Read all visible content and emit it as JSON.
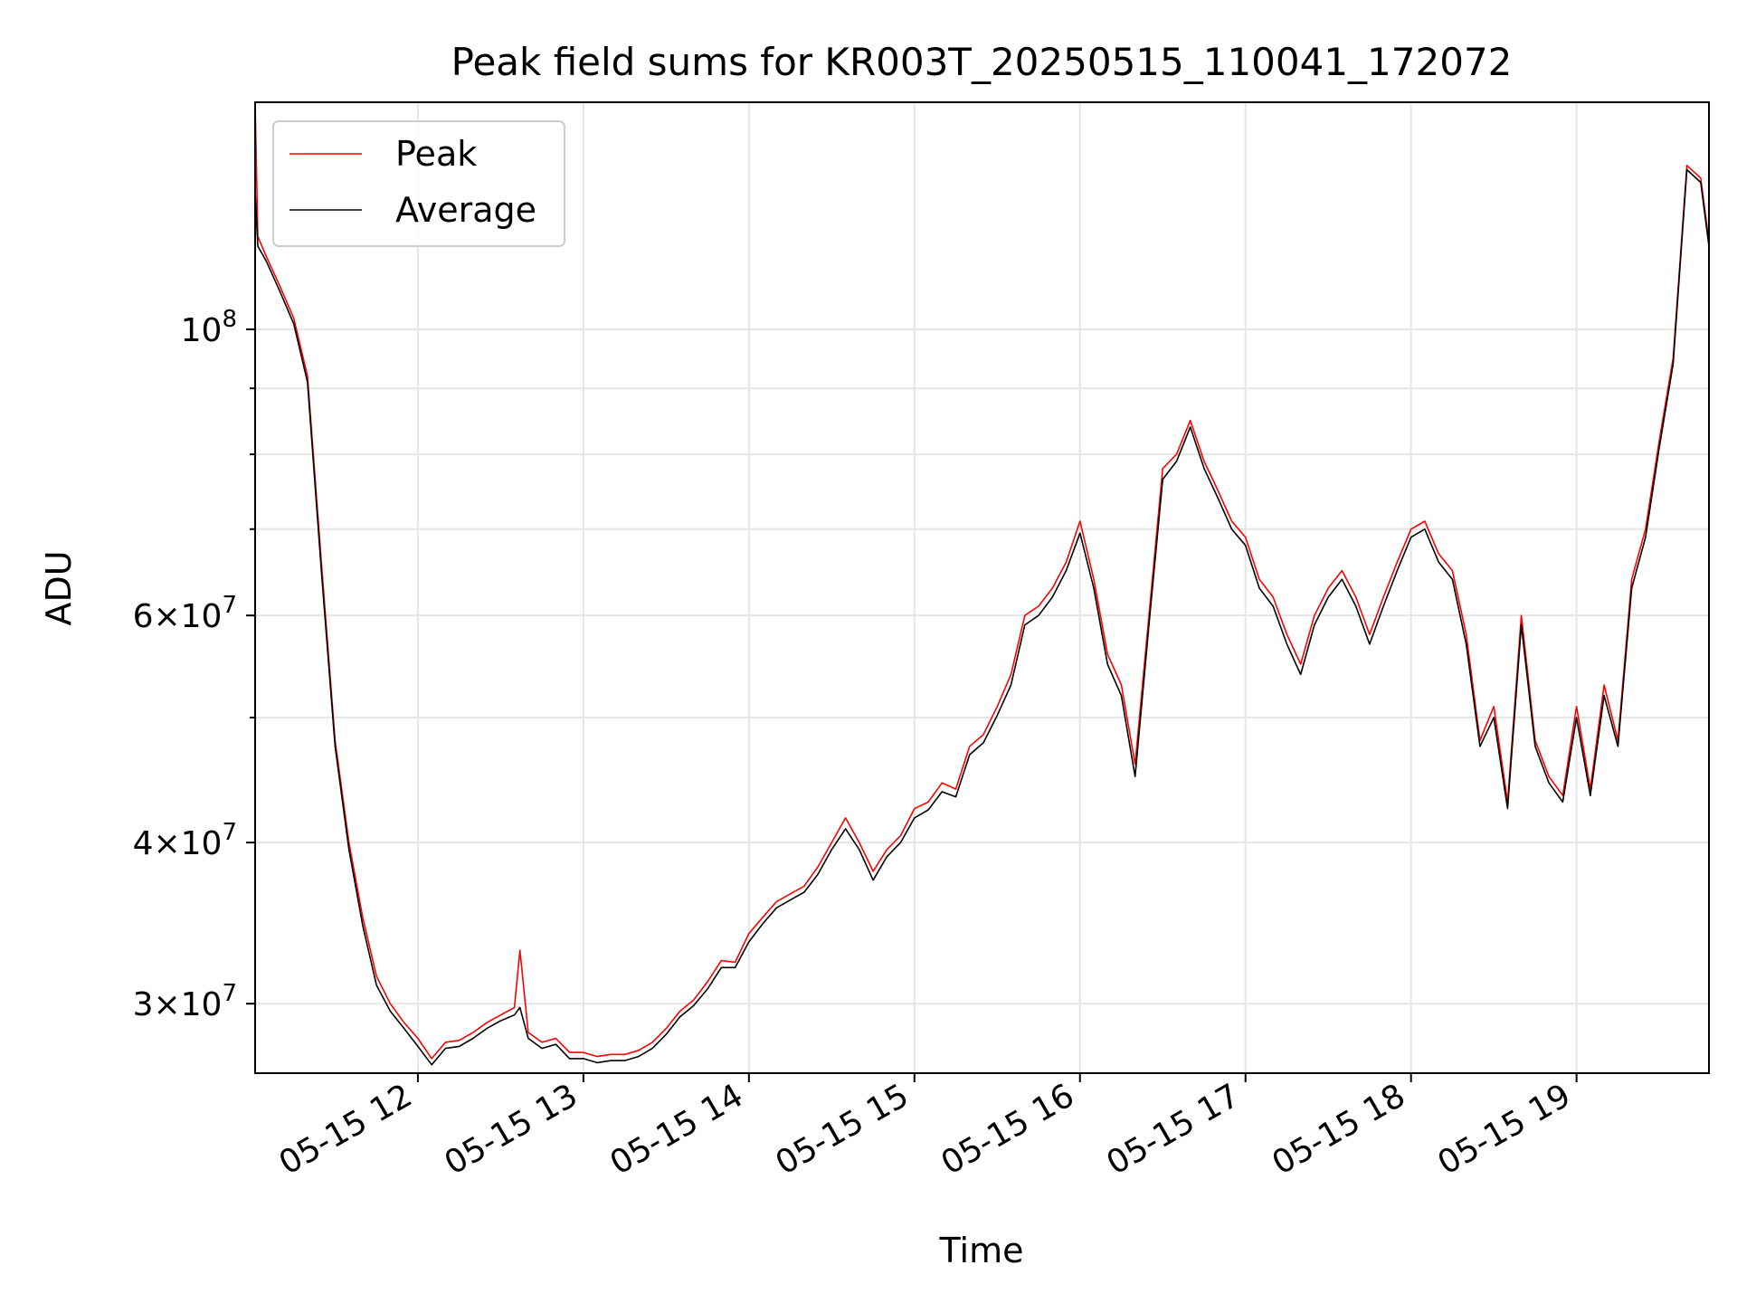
{
  "chart_data": {
    "type": "line",
    "title": "Peak field sums for KR003T_20250515_110041_172072",
    "xlabel": "Time",
    "ylabel": "ADU",
    "yscale": "log",
    "xlim": [
      "2025-05-15 11:01",
      "2025-05-15 19:48"
    ],
    "ylim": [
      26500000,
      150000000
    ],
    "grid": true,
    "legend_position": "top-left",
    "x_ticks": [
      "05-15 12",
      "05-15 13",
      "05-15 14",
      "05-15 15",
      "05-15 16",
      "05-15 17",
      "05-15 18",
      "05-15 19"
    ],
    "y_ticks": [
      {
        "value": 30000000,
        "label": "3×10^7",
        "mantissa": "3",
        "exponent": "7"
      },
      {
        "value": 40000000,
        "label": "4×10^7",
        "mantissa": "4",
        "exponent": "7"
      },
      {
        "value": 60000000,
        "label": "6×10^7",
        "mantissa": "6",
        "exponent": "7"
      },
      {
        "value": 100000000,
        "label": "10^8",
        "mantissa": "",
        "exponent": "8"
      }
    ],
    "x": [
      "11:01",
      "11:02",
      "11:05",
      "11:10",
      "11:15",
      "11:20",
      "11:25",
      "11:30",
      "11:35",
      "11:40",
      "11:45",
      "11:50",
      "11:55",
      "12:00",
      "12:05",
      "12:10",
      "12:15",
      "12:20",
      "12:25",
      "12:30",
      "12:35",
      "12:37",
      "12:40",
      "12:45",
      "12:50",
      "12:55",
      "13:00",
      "13:05",
      "13:10",
      "13:15",
      "13:20",
      "13:25",
      "13:30",
      "13:35",
      "13:40",
      "13:45",
      "13:50",
      "13:55",
      "14:00",
      "14:05",
      "14:10",
      "14:15",
      "14:20",
      "14:25",
      "14:30",
      "14:35",
      "14:40",
      "14:45",
      "14:50",
      "14:55",
      "15:00",
      "15:05",
      "15:10",
      "15:15",
      "15:20",
      "15:25",
      "15:30",
      "15:35",
      "15:40",
      "15:45",
      "15:50",
      "15:55",
      "16:00",
      "16:05",
      "16:10",
      "16:15",
      "16:20",
      "16:25",
      "16:30",
      "16:35",
      "16:40",
      "16:45",
      "16:50",
      "16:55",
      "17:00",
      "17:05",
      "17:10",
      "17:15",
      "17:20",
      "17:25",
      "17:30",
      "17:35",
      "17:40",
      "17:45",
      "17:50",
      "17:55",
      "18:00",
      "18:05",
      "18:10",
      "18:15",
      "18:20",
      "18:25",
      "18:30",
      "18:35",
      "18:40",
      "18:45",
      "18:50",
      "18:55",
      "19:00",
      "19:05",
      "19:10",
      "19:15",
      "19:20",
      "19:25",
      "19:30",
      "19:35",
      "19:40",
      "19:45",
      "19:48"
    ],
    "series": [
      {
        "name": "Peak",
        "color": "#ff0000",
        "values": [
          150000000,
          118000000,
          114000000,
          108000000,
          102000000,
          92000000,
          66000000,
          48000000,
          40000000,
          35000000,
          31500000,
          30000000,
          29000000,
          28200000,
          27200000,
          28000000,
          28100000,
          28500000,
          29000000,
          29400000,
          29800000,
          33000000,
          28500000,
          28000000,
          28200000,
          27500000,
          27500000,
          27300000,
          27400000,
          27400000,
          27600000,
          28000000,
          28700000,
          29600000,
          30200000,
          31200000,
          32400000,
          32300000,
          34000000,
          35000000,
          36000000,
          36500000,
          37000000,
          38300000,
          40000000,
          41800000,
          40000000,
          38000000,
          39500000,
          40500000,
          42500000,
          43000000,
          44500000,
          44000000,
          47500000,
          48500000,
          51000000,
          54000000,
          60000000,
          61000000,
          63000000,
          66000000,
          71000000,
          64000000,
          56000000,
          53000000,
          46000000,
          60000000,
          78000000,
          80000000,
          85000000,
          79000000,
          75000000,
          71000000,
          69000000,
          64000000,
          62000000,
          58000000,
          55000000,
          60000000,
          63000000,
          65000000,
          62000000,
          58000000,
          62000000,
          66000000,
          70000000,
          71000000,
          67000000,
          65000000,
          58000000,
          48000000,
          51000000,
          43000000,
          60000000,
          48000000,
          45000000,
          43500000,
          51000000,
          44000000,
          53000000,
          48000000,
          64000000,
          70000000,
          82000000,
          95000000,
          134000000,
          131000000,
          117000000
        ]
      },
      {
        "name": "Average",
        "color": "#000000",
        "values": [
          128000000,
          116000000,
          113000000,
          107000000,
          101000000,
          91000000,
          65000000,
          47500000,
          39500000,
          34500000,
          31000000,
          29600000,
          28700000,
          27800000,
          26900000,
          27700000,
          27800000,
          28200000,
          28700000,
          29100000,
          29400000,
          29800000,
          28200000,
          27700000,
          27900000,
          27200000,
          27200000,
          27000000,
          27100000,
          27100000,
          27300000,
          27700000,
          28400000,
          29300000,
          29900000,
          30800000,
          32000000,
          32000000,
          33500000,
          34600000,
          35600000,
          36100000,
          36600000,
          37800000,
          39500000,
          41000000,
          39500000,
          37400000,
          39000000,
          40000000,
          41800000,
          42400000,
          43800000,
          43400000,
          46800000,
          47800000,
          50200000,
          53000000,
          59000000,
          60000000,
          62000000,
          65000000,
          69500000,
          63000000,
          55000000,
          52000000,
          45000000,
          59000000,
          76500000,
          79000000,
          84000000,
          78000000,
          74000000,
          70000000,
          68000000,
          63000000,
          61000000,
          57000000,
          54000000,
          59000000,
          62000000,
          64000000,
          61000000,
          57000000,
          61000000,
          65000000,
          69000000,
          70000000,
          66000000,
          64000000,
          57000000,
          47500000,
          50000000,
          42500000,
          59000000,
          47500000,
          44500000,
          43000000,
          50000000,
          43500000,
          52000000,
          47500000,
          63000000,
          69000000,
          81000000,
          94000000,
          133000000,
          130000000,
          116000000
        ]
      }
    ]
  }
}
